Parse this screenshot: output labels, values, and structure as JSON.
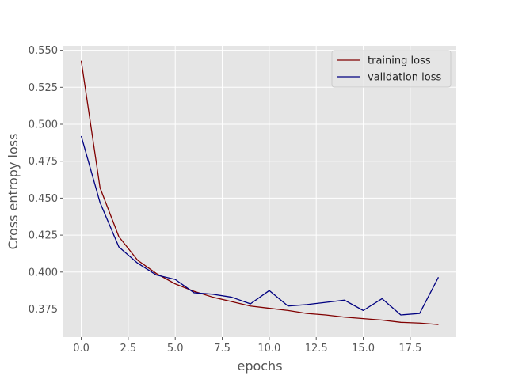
{
  "chart_data": {
    "type": "line",
    "title": "",
    "xlabel": "epochs",
    "ylabel": "Cross entropy loss",
    "xlim": [
      -0.95,
      19.95
    ],
    "ylim": [
      0.356,
      0.553
    ],
    "xticks": [
      0.0,
      2.5,
      5.0,
      7.5,
      10.0,
      12.5,
      15.0,
      17.5
    ],
    "xtick_labels": [
      "0.0",
      "2.5",
      "5.0",
      "7.5",
      "10.0",
      "12.5",
      "15.0",
      "17.5"
    ],
    "yticks": [
      0.375,
      0.4,
      0.425,
      0.45,
      0.475,
      0.5,
      0.525,
      0.55
    ],
    "ytick_labels": [
      "0.375",
      "0.400",
      "0.425",
      "0.450",
      "0.475",
      "0.500",
      "0.525",
      "0.550"
    ],
    "grid": true,
    "style": "ggplot",
    "legend_position": "top-right",
    "x": [
      0,
      1,
      2,
      3,
      4,
      5,
      6,
      7,
      8,
      9,
      10,
      11,
      12,
      13,
      14,
      15,
      16,
      17,
      18,
      19
    ],
    "series": [
      {
        "name": "training loss",
        "color": "#800000",
        "values": [
          0.543,
          0.457,
          0.424,
          0.408,
          0.399,
          0.392,
          0.387,
          0.383,
          0.38,
          0.377,
          0.3755,
          0.374,
          0.372,
          0.371,
          0.3695,
          0.3685,
          0.3675,
          0.366,
          0.3655,
          0.3645
        ]
      },
      {
        "name": "validation loss",
        "color": "#000080",
        "values": [
          0.492,
          0.447,
          0.417,
          0.406,
          0.398,
          0.395,
          0.386,
          0.385,
          0.383,
          0.3785,
          0.3875,
          0.377,
          0.378,
          0.3795,
          0.381,
          0.374,
          0.382,
          0.371,
          0.372,
          0.3965
        ]
      }
    ]
  },
  "colors": {
    "panel_background": "#E5E5E5",
    "grid": "#FFFFFF",
    "tick_text": "#555555"
  }
}
